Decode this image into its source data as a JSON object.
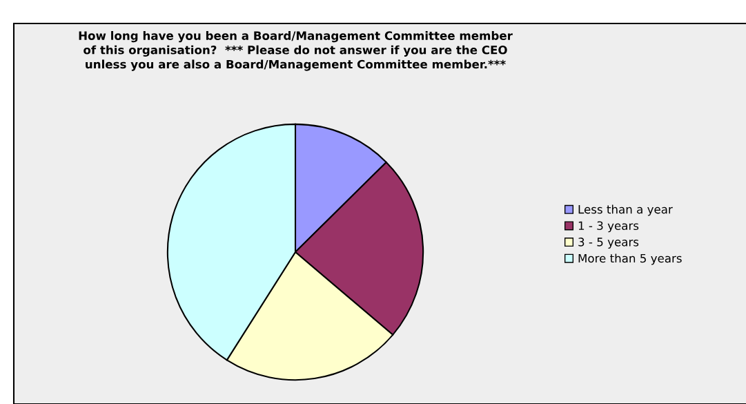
{
  "chart_data": {
    "type": "pie",
    "title": "How long have you been a Board/Management Committee member\nof this organisation?  *** Please do not answer if you are the CEO\nunless you are also a Board/Management Committee member.***",
    "categories": [
      "Less than a year",
      "1 - 3 years",
      "3 - 5 years",
      "More than 5 years"
    ],
    "values": [
      12.6,
      23.6,
      22.8,
      41.0
    ],
    "colors": [
      "#9999ff",
      "#993366",
      "#ffffcc",
      "#ccffff"
    ],
    "legend": "right"
  }
}
